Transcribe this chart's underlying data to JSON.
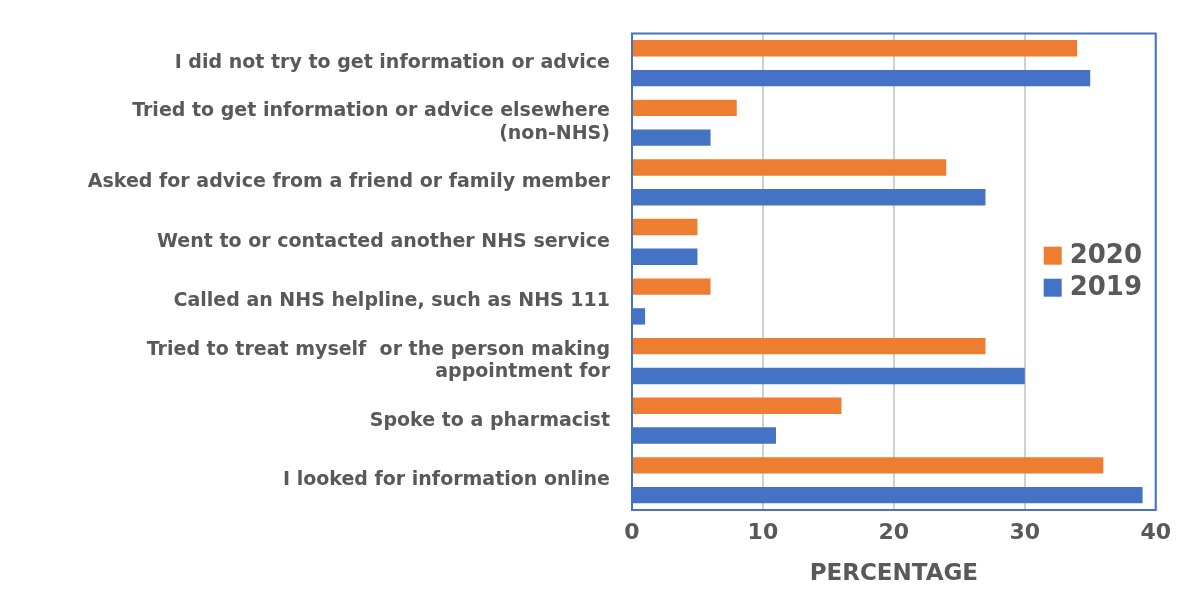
{
  "chart_data": {
    "type": "bar",
    "orientation": "horizontal",
    "xlabel": "PERCENTAGE",
    "categories": [
      "I did not try to get information or advice",
      "Tried to get information or advice elsewhere (non-NHS)",
      "Asked for advice from a friend or family member",
      "Went to or contacted another NHS service",
      "Called an NHS helpline, such as NHS 111",
      "Tried to treat myself  or the person making appointment for",
      "Spoke to a pharmacist",
      "I looked for information online"
    ],
    "series": [
      {
        "name": "2020",
        "color": "#ed7d31",
        "values": [
          34,
          8,
          24,
          5,
          6,
          27,
          16,
          36
        ]
      },
      {
        "name": "2019",
        "color": "#4472c4",
        "values": [
          35,
          6,
          27,
          5,
          1,
          30,
          11,
          39
        ]
      }
    ],
    "xlim": [
      0,
      40
    ],
    "xticks": [
      0,
      10,
      20,
      30,
      40
    ],
    "grid": "x",
    "legend": "right"
  }
}
